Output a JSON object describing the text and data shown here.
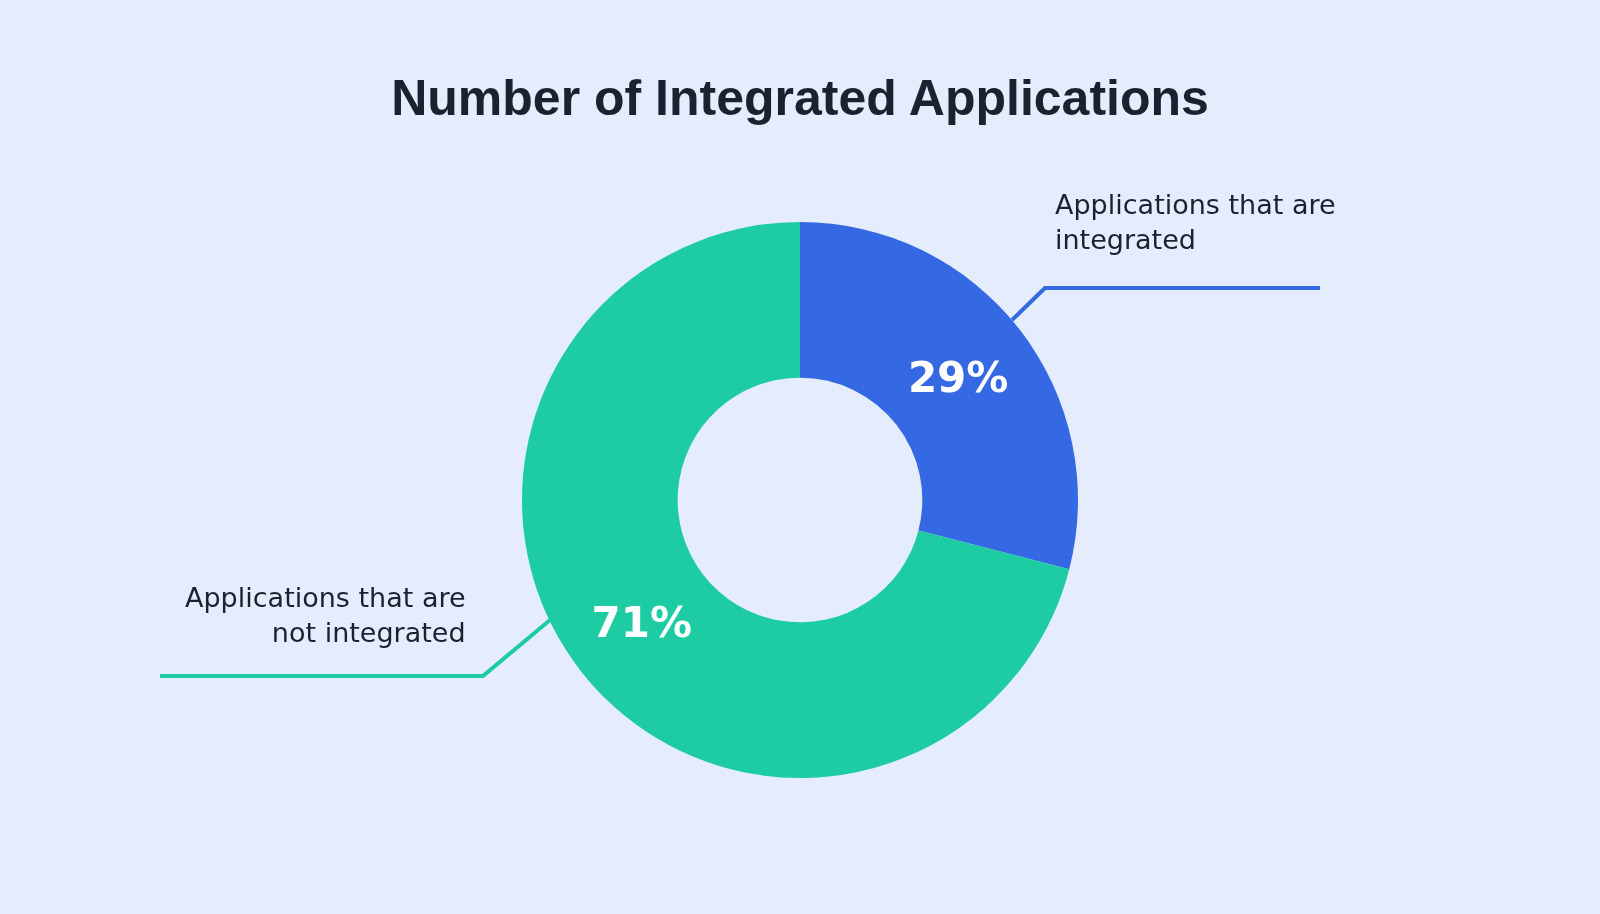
{
  "chart_data": {
    "type": "donut",
    "title": "Number of Integrated Applications",
    "categories": [
      "Applications that are integrated",
      "Applications that are not integrated"
    ],
    "values": [
      29,
      71
    ],
    "colors": [
      "#3469e3",
      "#1dcca2"
    ],
    "value_labels": [
      "29%",
      "71%"
    ],
    "legend": false
  }
}
